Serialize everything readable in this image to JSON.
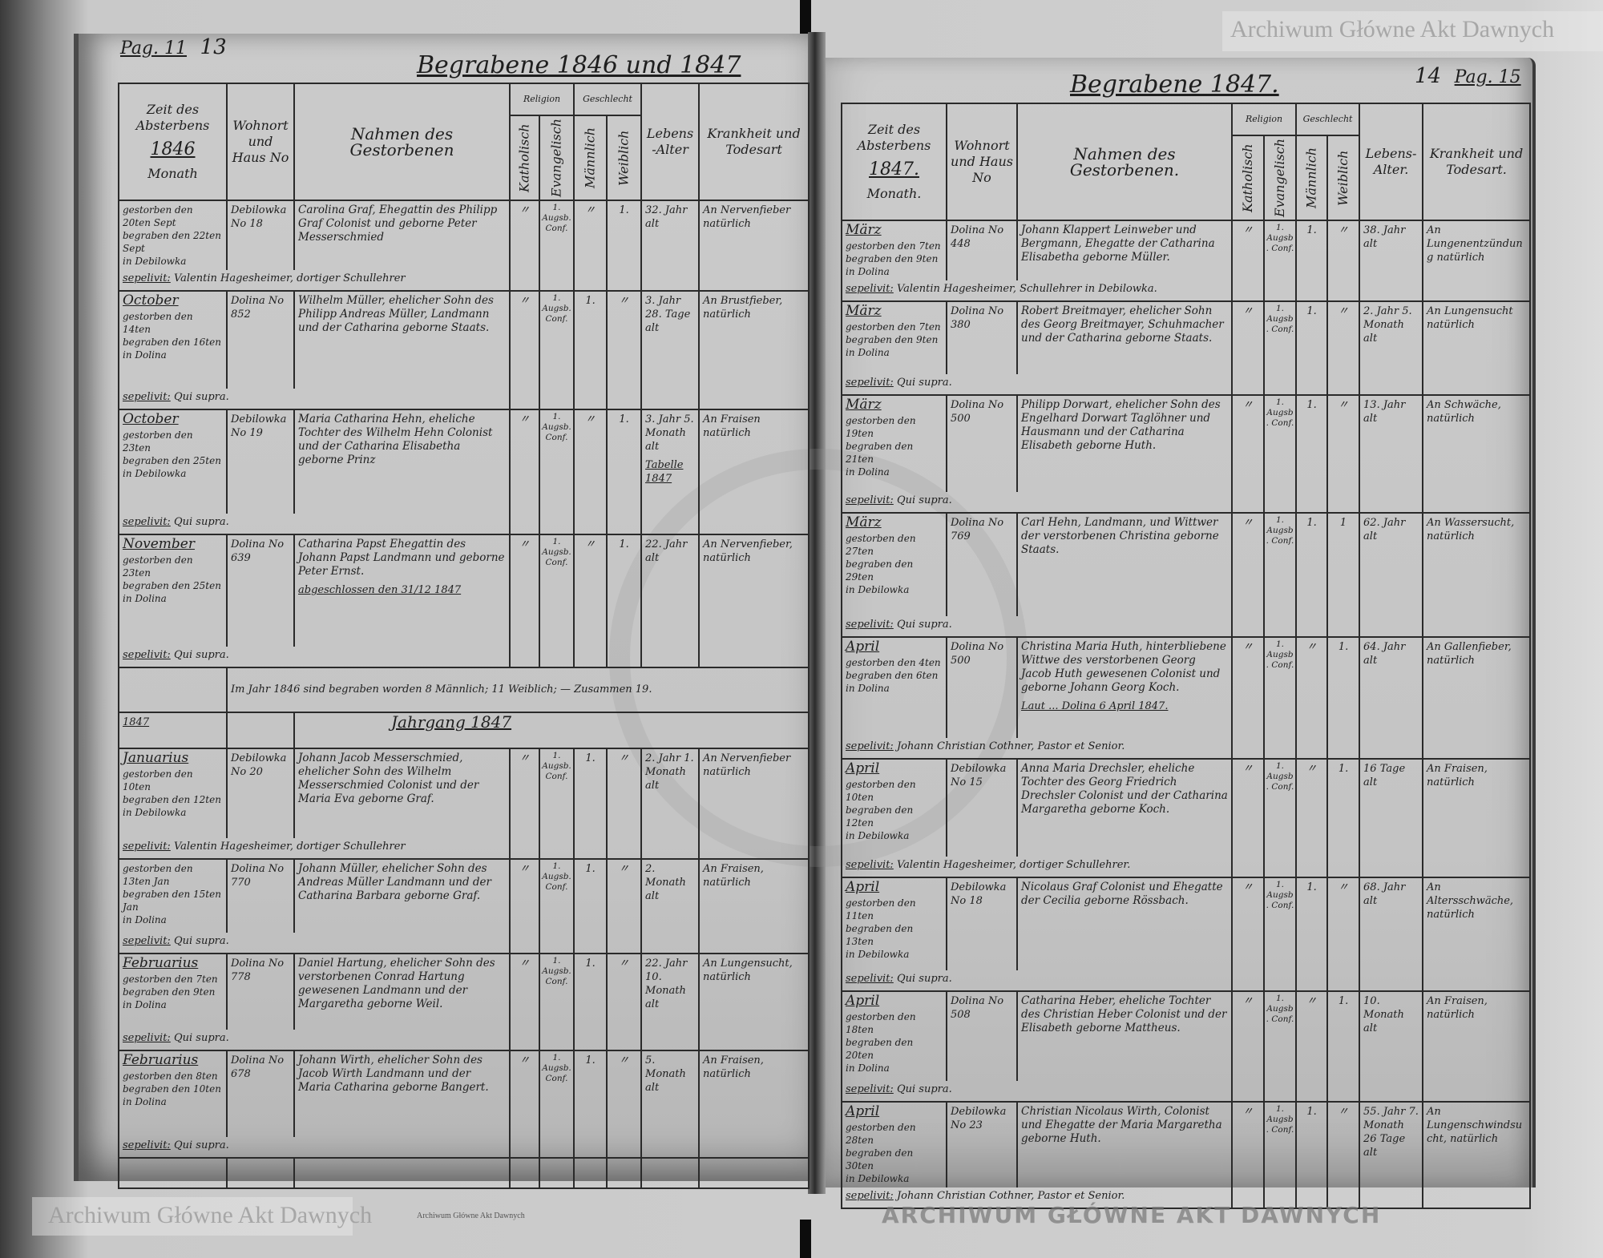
{
  "left_page": {
    "page_label": "Pag. 11",
    "page_number": "13",
    "title": "Begrabene 1846 und 1847",
    "headers": {
      "time": "Zeit des Absterbens",
      "year": "1846",
      "month": "Monath",
      "residence": "Wohnort und Haus No",
      "name": "Nahmen des Gestorbenen",
      "religion": "Religion",
      "catholic": "Katholisch",
      "evangelical": "Evangelisch",
      "sex": "Geschlecht",
      "male": "Männlich",
      "female": "Weiblich",
      "age": "Lebens-Alter",
      "cause": "Krankheit und Todesart"
    },
    "entries": [
      {
        "month": "",
        "died": "gestorben den 20ten Sept",
        "buried": "begraben den 22ten Sept",
        "place": "in Debilowka",
        "sepelivit": "Valentin Hagesheimer, dortiger Schullehrer",
        "house": "Debilowka No 18",
        "name": "Carolina Graf, Ehegattin des Philipp Graf Colonist und geborne Peter Messerschmied",
        "cath": "〃",
        "evang": "1. Augsb. Conf.",
        "male": "〃",
        "female": "1.",
        "age": "32. Jahr alt",
        "cause": "An Nervenfieber natürlich"
      },
      {
        "month": "October",
        "died": "gestorben den 14ten",
        "buried": "begraben den 16ten",
        "place": "in Dolina",
        "sepelivit": "Qui supra.",
        "house": "Dolina No 852",
        "name": "Wilhelm Müller, ehelicher Sohn des Philipp Andreas Müller, Landmann und der Catharina geborne Staats.",
        "cath": "〃",
        "evang": "1. Augsb. Conf.",
        "male": "1.",
        "female": "〃",
        "age": "3. Jahr 28. Tage alt",
        "cause": "An Brustfieber, natürlich"
      },
      {
        "month": "October",
        "died": "gestorben den 23ten",
        "buried": "begraben den 25ten",
        "place": "in Debilowka",
        "sepelivit": "Qui supra.",
        "house": "Debilowka No 19",
        "name": "Maria Catharina Hehn, eheliche Tochter des Wilhelm Hehn Colonist und der Catharina Elisabetha geborne Prinz",
        "cath": "〃",
        "evang": "1. Augsb. Conf.",
        "male": "〃",
        "female": "1.",
        "age": "3. Jahr 5. Monath alt",
        "cause": "An Fraisen natürlich"
      },
      {
        "month": "November",
        "died": "gestorben den 23ten",
        "buried": "begraben den 25ten",
        "place": "in Dolina",
        "sepelivit": "Qui supra.",
        "house": "Dolina No 639",
        "name": "Catharina Papst Ehegattin des Johann Papst Landmann und geborne Peter Ernst.",
        "cath": "〃",
        "evang": "1. Augsb. Conf.",
        "male": "〃",
        "female": "1.",
        "age": "22. Jahr alt",
        "cause": "An Nervenfieber, natürlich"
      },
      {
        "month": "Januarius",
        "died": "gestorben den 10ten",
        "buried": "begraben den 12ten",
        "place": "in Debilowka",
        "sepelivit": "Valentin Hagesheimer, dortiger Schullehrer",
        "house": "Debilowka No 20",
        "name": "Johann Jacob Messerschmied, ehelicher Sohn des Wilhelm Messerschmied Colonist und der Maria Eva geborne Graf.",
        "cath": "〃",
        "evang": "1. Augsb. Conf.",
        "male": "1.",
        "female": "〃",
        "age": "2. Jahr 1. Monath alt",
        "cause": "An Nervenfieber natürlich"
      },
      {
        "month": "",
        "died": "gestorben den 13ten Jan",
        "buried": "begraben den 15ten Jan",
        "place": "in Dolina",
        "sepelivit": "Qui supra.",
        "house": "Dolina No 770",
        "name": "Johann Müller, ehelicher Sohn des Andreas Müller Landmann und der Catharina Barbara geborne Graf.",
        "cath": "〃",
        "evang": "1. Augsb. Conf.",
        "male": "1.",
        "female": "〃",
        "age": "2. Monath alt",
        "cause": "An Fraisen, natürlich"
      },
      {
        "month": "Februarius",
        "died": "gestorben den 7ten",
        "buried": "begraben den 9ten",
        "place": "in Dolina",
        "sepelivit": "Qui supra.",
        "house": "Dolina No 778",
        "name": "Daniel Hartung, ehelicher Sohn des verstorbenen Conrad Hartung gewesenen Landmann und der Margaretha geborne Weil.",
        "cath": "〃",
        "evang": "1. Augsb. Conf.",
        "male": "1.",
        "female": "〃",
        "age": "22. Jahr 10. Monath alt",
        "cause": "An Lungensucht, natürlich"
      },
      {
        "month": "Februarius",
        "died": "gestorben den 8ten",
        "buried": "begraben den 10ten",
        "place": "in Dolina",
        "sepelivit": "Qui supra.",
        "house": "Dolina No 678",
        "name": "Johann Wirth, ehelicher Sohn des Jacob Wirth Landmann und der Maria Catharina geborne Bangert.",
        "cath": "〃",
        "evang": "1. Augsb. Conf.",
        "male": "1.",
        "female": "〃",
        "age": "5. Monath alt",
        "cause": "An Fraisen, natürlich"
      }
    ],
    "tabelle_note": "Tabelle 1847",
    "closing_note": "abgeschlossen den 31/12 1847",
    "summary": "Im Jahr 1846 sind begraben worden 8 Männlich; 11 Weiblich; — Zusammen 19.",
    "year_1847": "1847",
    "jahrgang": "Jahrgang 1847"
  },
  "right_page": {
    "page_number": "14",
    "page_label": "Pag. 15",
    "title": "Begrabene 1847.",
    "headers": {
      "time": "Zeit des Absterbens",
      "year": "1847.",
      "month": "Monath.",
      "residence": "Wohnort und Haus No",
      "name": "Nahmen des Gestorbenen.",
      "religion": "Religion",
      "catholic": "Katholisch",
      "evangelical": "Evangelisch",
      "sex": "Geschlecht",
      "male": "Männlich",
      "female": "Weiblich",
      "age": "Lebens-Alter.",
      "cause": "Krankheit und Todesart."
    },
    "entries": [
      {
        "month": "März",
        "died": "gestorben den 7ten",
        "buried": "begraben den 9ten",
        "place": "in Dolina",
        "sepelivit": "Valentin Hagesheimer, Schullehrer in Debilowka.",
        "house": "Dolina No 448",
        "name": "Johann Klappert Leinweber und Bergmann, Ehegatte der Catharina Elisabetha geborne Müller.",
        "cath": "〃",
        "evang": "1. Augsb. Conf.",
        "male": "1.",
        "female": "〃",
        "age": "38. Jahr alt",
        "cause": "An Lungenentzündung natürlich"
      },
      {
        "month": "März",
        "died": "gestorben den 7ten",
        "buried": "begraben den 9ten",
        "place": "in Dolina",
        "sepelivit": "Qui supra.",
        "house": "Dolina No 380",
        "name": "Robert Breitmayer, ehelicher Sohn des Georg Breitmayer, Schuhmacher und der Catharina geborne Staats.",
        "cath": "〃",
        "evang": "1. Augsb. Conf.",
        "male": "1.",
        "female": "〃",
        "age": "2. Jahr 5. Monath alt",
        "cause": "An Lungensucht natürlich"
      },
      {
        "month": "März",
        "died": "gestorben den 19ten",
        "buried": "begraben den 21ten",
        "place": "in Dolina",
        "sepelivit": "Qui supra.",
        "house": "Dolina No 500",
        "name": "Philipp Dorwart, ehelicher Sohn des Engelhard Dorwart Taglöhner und Hausmann und der Catharina Elisabeth geborne Huth.",
        "cath": "〃",
        "evang": "1. Augsb. Conf.",
        "male": "1.",
        "female": "〃",
        "age": "13. Jahr alt",
        "cause": "An Schwäche, natürlich"
      },
      {
        "month": "März",
        "died": "gestorben den 27ten",
        "buried": "begraben den 29ten",
        "place": "in Debilowka",
        "sepelivit": "Qui supra.",
        "house": "Dolina No 769",
        "name": "Carl Hehn, Landmann, und Wittwer der verstorbenen Christina geborne Staats.",
        "cath": "〃",
        "evang": "1. Augsb. Conf.",
        "male": "1.",
        "female": "1",
        "age": "62. Jahr alt",
        "cause": "An Wassersucht, natürlich"
      },
      {
        "month": "April",
        "died": "gestorben den 4ten",
        "buried": "begraben den 6ten",
        "place": "in Dolina",
        "sepelivit": "Johann Christian Cothner, Pastor et Senior.",
        "house": "Dolina No 500",
        "name": "Christina Maria Huth, hinterbliebene Wittwe des verstorbenen Georg Jacob Huth gewesenen Colonist und geborne Johann Georg Koch.",
        "cath": "〃",
        "evang": "1. Augsb. Conf.",
        "male": "〃",
        "female": "1.",
        "age": "64. Jahr alt",
        "cause": "An Gallenfieber, natürlich"
      },
      {
        "month": "April",
        "died": "gestorben den 10ten",
        "buried": "begraben den 12ten",
        "place": "in Debilowka",
        "sepelivit": "Valentin Hagesheimer, dortiger Schullehrer.",
        "house": "Debilowka No 15",
        "name": "Anna Maria Drechsler, eheliche Tochter des Georg Friedrich Drechsler Colonist und der Catharina Margaretha geborne Koch.",
        "cath": "〃",
        "evang": "1. Augsb. Conf.",
        "male": "〃",
        "female": "1.",
        "age": "16 Tage alt",
        "cause": "An Fraisen, natürlich"
      },
      {
        "month": "April",
        "died": "gestorben den 11ten",
        "buried": "begraben den 13ten",
        "place": "in Debilowka",
        "sepelivit": "Qui supra.",
        "house": "Debilowka No 18",
        "name": "Nicolaus Graf Colonist und Ehegatte der Cecilia geborne Rössbach.",
        "cath": "〃",
        "evang": "1. Augsb. Conf.",
        "male": "1.",
        "female": "〃",
        "age": "68. Jahr alt",
        "cause": "An Altersschwäche, natürlich"
      },
      {
        "month": "April",
        "died": "gestorben den 18ten",
        "buried": "begraben den 20ten",
        "place": "in Dolina",
        "sepelivit": "Qui supra.",
        "house": "Dolina No 508",
        "name": "Catharina Heber, eheliche Tochter des Christian Heber Colonist und der Elisabeth geborne Mattheus.",
        "cath": "〃",
        "evang": "1. Augsb. Conf.",
        "male": "〃",
        "female": "1.",
        "age": "10. Monath alt",
        "cause": "An Fraisen, natürlich"
      },
      {
        "month": "April",
        "died": "gestorben den 28ten",
        "buried": "begraben den 30ten",
        "place": "in Debilowka",
        "sepelivit": "Johann Christian Cothner, Pastor et Senior.",
        "house": "Debilowka No 23",
        "name": "Christian Nicolaus Wirth, Colonist und Ehegatte der Maria Margaretha geborne Huth.",
        "cath": "〃",
        "evang": "1. Augsb. Conf.",
        "male": "1.",
        "female": "〃",
        "age": "55. Jahr 7. Monath 26 Tage alt",
        "cause": "An Lungenschwindsucht, natürlich"
      }
    ],
    "approval_note": "Laut ... Dolina 6 April 1847."
  },
  "watermark": {
    "text": "Archiwum Główne Akt Dawnych",
    "seal_text": "ARCHIWUM GŁÓWNE AKT DAWNYCH"
  }
}
